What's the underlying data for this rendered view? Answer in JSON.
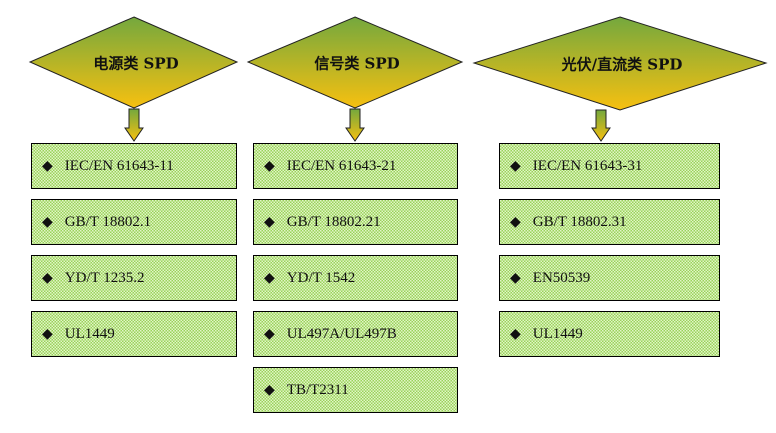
{
  "columns": [
    {
      "title": "电源类 SPD",
      "items": [
        "IEC/EN 61643-11",
        "GB/T 18802.1",
        "YD/T 1235.2",
        "UL1449"
      ]
    },
    {
      "title": "信号类 SPD",
      "items": [
        "IEC/EN 61643-21",
        "GB/T 18802.21",
        "YD/T 1542",
        "UL497A/UL497B",
        "TB/T2311"
      ]
    },
    {
      "title": "光伏/直流类 SPD",
      "items": [
        "IEC/EN 61643-31",
        "GB/T 18802.31",
        "EN50539",
        "UL1449"
      ]
    }
  ],
  "colors": {
    "diamond_top": "#74a83e",
    "diamond_bottom": "#f7c010",
    "box_fill": "#b8e484"
  },
  "bullet_icon": "diamond-bullet"
}
